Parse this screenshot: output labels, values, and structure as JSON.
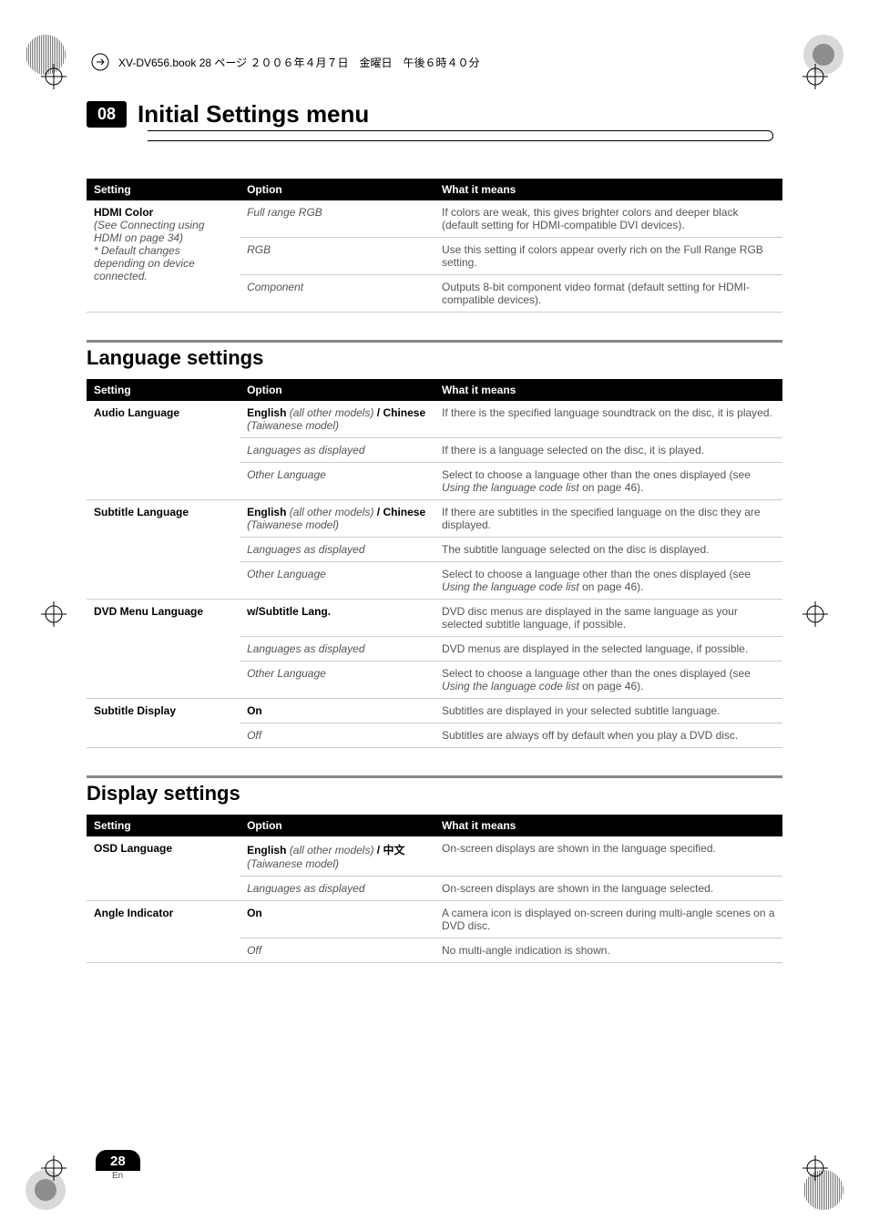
{
  "top_line": "XV-DV656.book  28 ページ  ２００６年４月７日　金曜日　午後６時４０分",
  "chapter_number": "08",
  "chapter_title": "Initial Settings menu",
  "table1": {
    "headers": [
      "Setting",
      "Option",
      "What it means"
    ],
    "rows": [
      {
        "setting_bold": "HDMI Color",
        "setting_sub": "(See Connecting using HDMI on page 34)",
        "setting_note": "* Default changes depending on device connected.",
        "option": "Full range RGB",
        "meaning": "If colors are weak, this gives brighter colors and deeper black (default setting for HDMI-compatible DVI devices).",
        "rowspan": 3
      },
      {
        "option": "RGB",
        "meaning": "Use this setting if colors appear overly rich on the Full Range RGB setting."
      },
      {
        "option": "Component",
        "meaning": "Outputs 8-bit component video format (default setting for HDMI-compatible devices)."
      }
    ]
  },
  "section_lang": "Language settings",
  "table2": {
    "headers": [
      "Setting",
      "Option",
      "What it means"
    ],
    "groups": [
      {
        "setting": "Audio Language",
        "rows": [
          {
            "option_bold_pre": "English ",
            "option_italic_mid": "(all other models)",
            "option_bold_mid": " / Chinese ",
            "option_italic_post": "(Taiwanese model)",
            "meaning": "If there is the specified language soundtrack on the disc, it is played."
          },
          {
            "option_italic": "Languages as displayed",
            "meaning": "If there is a language selected on the disc, it is played."
          },
          {
            "option_italic": "Other Language",
            "meaning": "Select to choose a language other than the ones displayed (see Using the language code list on page 46).",
            "meaning_italic_part": "Using the language code list"
          }
        ]
      },
      {
        "setting": "Subtitle Language",
        "rows": [
          {
            "option_bold_pre": "English ",
            "option_italic_mid": "(all other models)",
            "option_bold_mid": " / Chinese ",
            "option_italic_post": "(Taiwanese model)",
            "meaning": "If there are subtitles in the specified language on the disc they are displayed."
          },
          {
            "option_italic": "Languages as displayed",
            "meaning": "The subtitle language selected on the disc is displayed."
          },
          {
            "option_italic": "Other Language",
            "meaning": "Select to choose a language other than the ones displayed (see Using the language code list on page 46).",
            "meaning_italic_part": "Using the language code list"
          }
        ]
      },
      {
        "setting": "DVD Menu Language",
        "rows": [
          {
            "option_bold": "w/Subtitle Lang.",
            "meaning": "DVD disc menus are displayed in the same language as your selected subtitle language, if possible."
          },
          {
            "option_italic": "Languages as displayed",
            "meaning": "DVD menus are displayed in the selected language, if possible."
          },
          {
            "option_italic": "Other Language",
            "meaning": "Select to choose a language other than the ones displayed (see Using the language code list on page 46).",
            "meaning_italic_part": "Using the language code list"
          }
        ]
      },
      {
        "setting": "Subtitle Display",
        "rows": [
          {
            "option_bold": "On",
            "meaning": "Subtitles are displayed in your selected subtitle language."
          },
          {
            "option_italic": "Off",
            "meaning": "Subtitles are always off by default when you play a DVD disc."
          }
        ]
      }
    ]
  },
  "section_display": "Display settings",
  "table3": {
    "headers": [
      "Setting",
      "Option",
      "What it means"
    ],
    "groups": [
      {
        "setting": "OSD Language",
        "rows": [
          {
            "option_bold_pre": "English ",
            "option_italic_mid": "(all other models)",
            "option_bold_mid": " / ",
            "option_cjk": "中文",
            "option_italic_post": " (Taiwanese model)",
            "meaning": "On-screen displays are shown in the language specified."
          },
          {
            "option_italic": "Languages as displayed",
            "meaning": "On-screen displays are shown in the language selected."
          }
        ]
      },
      {
        "setting": "Angle Indicator",
        "rows": [
          {
            "option_bold": "On",
            "meaning": "A camera icon is displayed on-screen during multi-angle scenes on a DVD disc."
          },
          {
            "option_italic": "Off",
            "meaning": "No multi-angle indication is shown."
          }
        ]
      }
    ]
  },
  "page_number": "28",
  "page_lang": "En"
}
